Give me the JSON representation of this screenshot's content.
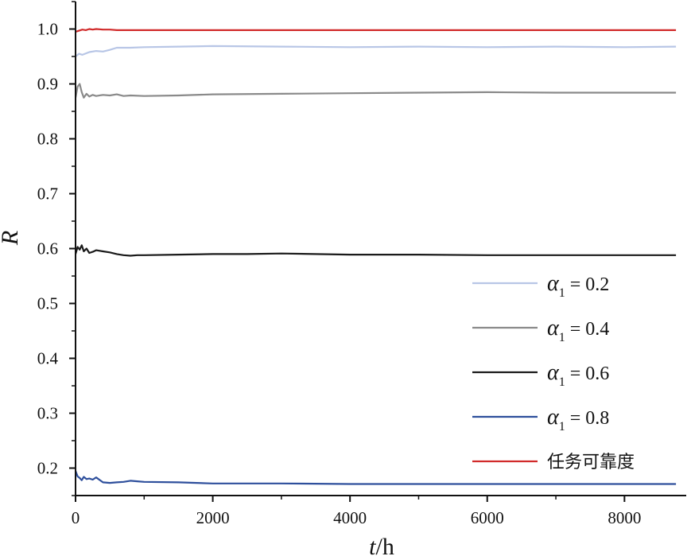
{
  "chart_data": {
    "type": "line",
    "xlabel_var": "t",
    "xlabel_unit": "/h",
    "ylabel": "R",
    "xlim": [
      0,
      8900
    ],
    "ylim": [
      0.15,
      1.05
    ],
    "x_ticks": [
      0,
      2000,
      4000,
      6000,
      8000
    ],
    "x_tick_labels": [
      "0",
      "2000",
      "4000",
      "6000",
      "8000"
    ],
    "y_ticks": [
      0.2,
      0.3,
      0.4,
      0.5,
      0.6,
      0.7,
      0.8,
      0.9,
      1.0
    ],
    "y_tick_labels": [
      "0.2",
      "0.3",
      "0.4",
      "0.5",
      "0.6",
      "0.7",
      "0.8",
      "0.9",
      "1.0"
    ],
    "grid": false,
    "legend_position": "lower-right",
    "series": [
      {
        "name": "α1 = 0.2",
        "legend_text": "= 0.2",
        "color": "#b8c6e6",
        "x": [
          0,
          50,
          100,
          200,
          300,
          400,
          500,
          600,
          800,
          1000,
          1500,
          2000,
          3000,
          4000,
          5000,
          6000,
          7000,
          8000,
          8750
        ],
        "y": [
          0.95,
          0.955,
          0.953,
          0.958,
          0.96,
          0.959,
          0.962,
          0.966,
          0.966,
          0.967,
          0.968,
          0.969,
          0.968,
          0.967,
          0.968,
          0.967,
          0.968,
          0.967,
          0.968
        ]
      },
      {
        "name": "α1 = 0.4",
        "legend_text": "= 0.4",
        "color": "#8a8a8a",
        "x": [
          0,
          30,
          60,
          90,
          120,
          160,
          200,
          250,
          300,
          400,
          500,
          600,
          700,
          800,
          1000,
          1500,
          2000,
          3000,
          4000,
          5000,
          6000,
          7000,
          8000,
          8750
        ],
        "y": [
          0.875,
          0.895,
          0.9,
          0.885,
          0.875,
          0.882,
          0.877,
          0.88,
          0.878,
          0.88,
          0.879,
          0.881,
          0.878,
          0.879,
          0.878,
          0.879,
          0.881,
          0.882,
          0.883,
          0.884,
          0.885,
          0.884,
          0.884,
          0.884
        ]
      },
      {
        "name": "α1 = 0.6",
        "legend_text": "= 0.6",
        "color": "#1a1a1a",
        "x": [
          0,
          30,
          60,
          90,
          120,
          160,
          200,
          250,
          300,
          400,
          500,
          600,
          700,
          800,
          900,
          1000,
          1500,
          2000,
          2500,
          3000,
          4000,
          5000,
          6000,
          7000,
          8000,
          8750
        ],
        "y": [
          0.59,
          0.603,
          0.598,
          0.606,
          0.595,
          0.6,
          0.592,
          0.594,
          0.597,
          0.595,
          0.593,
          0.59,
          0.588,
          0.587,
          0.588,
          0.588,
          0.589,
          0.59,
          0.59,
          0.591,
          0.589,
          0.589,
          0.588,
          0.588,
          0.588,
          0.588
        ]
      },
      {
        "name": "α1 = 0.8",
        "legend_text": "= 0.8",
        "color": "#2e4f9c",
        "x": [
          0,
          30,
          60,
          90,
          120,
          160,
          200,
          250,
          300,
          400,
          500,
          600,
          700,
          800,
          900,
          1000,
          1500,
          2000,
          3000,
          4000,
          5000,
          6000,
          7000,
          8000,
          8750
        ],
        "y": [
          0.195,
          0.185,
          0.182,
          0.178,
          0.184,
          0.18,
          0.181,
          0.179,
          0.183,
          0.174,
          0.173,
          0.174,
          0.175,
          0.177,
          0.176,
          0.175,
          0.174,
          0.172,
          0.172,
          0.171,
          0.171,
          0.171,
          0.171,
          0.171,
          0.171
        ]
      },
      {
        "name": "任务可靠度",
        "legend_text": "任务可靠度",
        "color": "#d12a2a",
        "x": [
          0,
          50,
          100,
          150,
          200,
          250,
          300,
          400,
          500,
          600,
          800,
          1000,
          2000,
          3000,
          4000,
          5000,
          6000,
          7000,
          8000,
          8750
        ],
        "y": [
          0.995,
          0.997,
          0.999,
          0.998,
          1.0,
          0.999,
          1.0,
          0.999,
          0.999,
          0.998,
          0.998,
          0.998,
          0.998,
          0.998,
          0.998,
          0.998,
          0.998,
          0.998,
          0.998,
          0.998
        ]
      }
    ]
  }
}
